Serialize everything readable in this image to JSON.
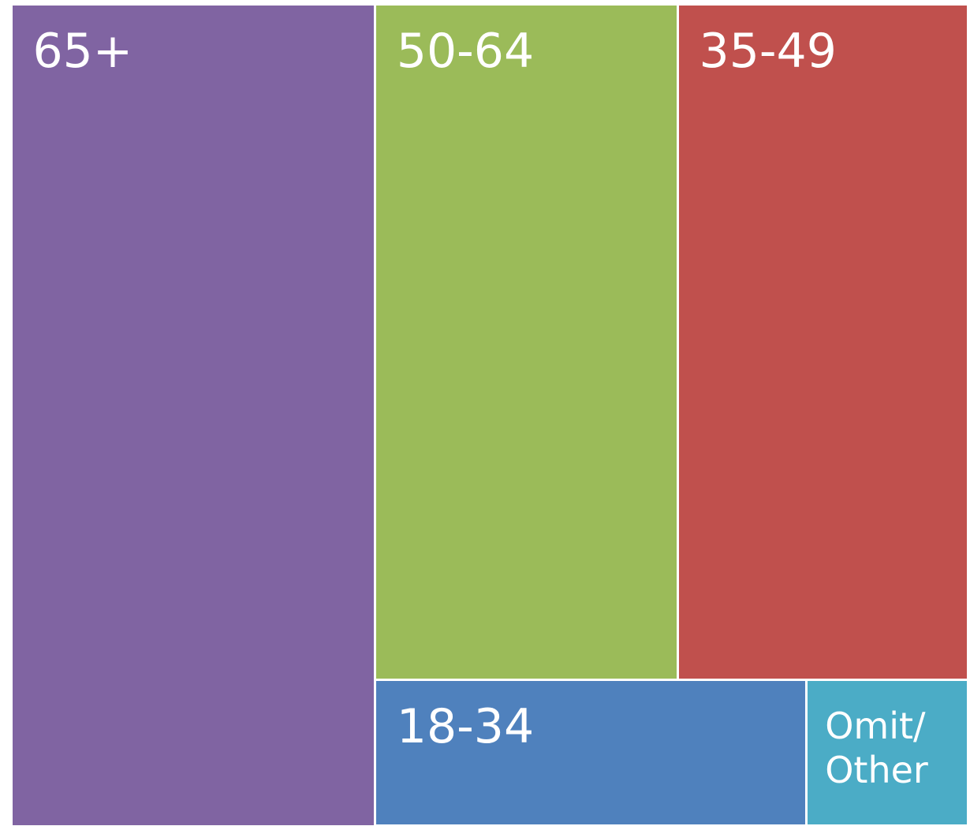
{
  "chart_data": {
    "type": "treemap",
    "categories": [
      "65+",
      "50-64",
      "35-49",
      "18-34",
      "Omit/ Other"
    ],
    "values": [
      38,
      26,
      25,
      8,
      3
    ],
    "colors": [
      "#8064a2",
      "#9bbb59",
      "#c0504d",
      "#4f81bd",
      "#4bacc6"
    ]
  }
}
